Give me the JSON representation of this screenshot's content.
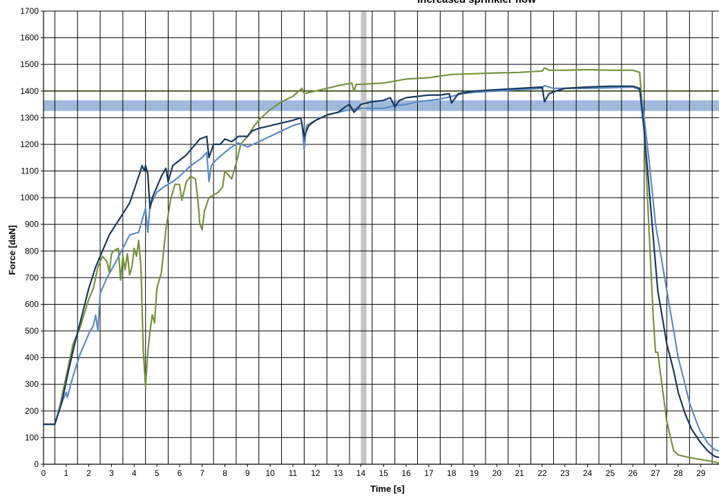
{
  "chart_data": {
    "type": "line",
    "title": "Increased sprinkler flow",
    "xlabel": "Time [s]",
    "ylabel": "Force [daN]",
    "xlim": [
      0,
      29.8
    ],
    "ylim": [
      0,
      1700
    ],
    "x_ticks": [
      0,
      1,
      2,
      3,
      4,
      5,
      6,
      7,
      8,
      9,
      10,
      11,
      12,
      13,
      14,
      15,
      16,
      17,
      18,
      19,
      20,
      21,
      22,
      23,
      24,
      25,
      26,
      27,
      28,
      29
    ],
    "x_tick_labels": [
      "0",
      "1",
      "2",
      "3",
      "4",
      "5",
      "6",
      "7",
      "8",
      "9",
      "10",
      "11",
      "12",
      "13",
      "14",
      "15",
      "16",
      "17",
      "18",
      "19",
      "20",
      "21",
      "22",
      "23",
      "24",
      "25",
      "26",
      "27",
      "28",
      "29"
    ],
    "y_ticks": [
      0,
      100,
      200,
      300,
      400,
      500,
      600,
      700,
      800,
      900,
      1000,
      1100,
      1200,
      1300,
      1400,
      1500,
      1600,
      1700
    ],
    "y_tick_labels": [
      "0",
      "100",
      "200",
      "300",
      "400",
      "500",
      "600",
      "700",
      "800",
      "900",
      "1000",
      "1100",
      "1200",
      "1300",
      "1400",
      "1500",
      "1600",
      "1700"
    ],
    "x_gridlines": [
      0.5,
      1.5,
      2.5,
      3.5,
      4.5,
      5.5,
      6.5,
      7.5,
      8.5,
      9.5,
      10.5,
      11.5,
      12.5,
      13.5,
      14.5,
      15.5,
      16.5,
      17.5,
      18.5,
      19.5,
      20.5,
      21.5,
      22.5,
      23.5,
      24.5,
      25.5,
      26.5,
      27.5,
      28.5,
      29.5
    ],
    "grid": true,
    "legend": "none",
    "reference_band": {
      "y_from": 1325,
      "y_to": 1365,
      "color": "#9fb9dd"
    },
    "reference_line": {
      "y": 1400,
      "color": "#9bc15a"
    },
    "marker_band": {
      "x_from": 14.0,
      "x_to": 14.25,
      "color": "#c4c4c4"
    },
    "series": [
      {
        "color": "#76923c",
        "points": [
          [
            0,
            150
          ],
          [
            0.5,
            150
          ],
          [
            0.7,
            210
          ],
          [
            1.0,
            330
          ],
          [
            1.3,
            450
          ],
          [
            1.6,
            510
          ],
          [
            2.0,
            620
          ],
          [
            2.2,
            660
          ],
          [
            2.4,
            740
          ],
          [
            2.6,
            780
          ],
          [
            2.8,
            760
          ],
          [
            2.9,
            720
          ],
          [
            3.0,
            790
          ],
          [
            3.1,
            800
          ],
          [
            3.3,
            810
          ],
          [
            3.4,
            690
          ],
          [
            3.5,
            780
          ],
          [
            3.6,
            730
          ],
          [
            3.7,
            790
          ],
          [
            3.8,
            710
          ],
          [
            3.9,
            740
          ],
          [
            4.0,
            810
          ],
          [
            4.1,
            780
          ],
          [
            4.2,
            840
          ],
          [
            4.3,
            740
          ],
          [
            4.4,
            430
          ],
          [
            4.5,
            290
          ],
          [
            4.6,
            420
          ],
          [
            4.7,
            500
          ],
          [
            4.8,
            560
          ],
          [
            4.9,
            530
          ],
          [
            5.0,
            660
          ],
          [
            5.2,
            720
          ],
          [
            5.4,
            880
          ],
          [
            5.6,
            990
          ],
          [
            5.8,
            1050
          ],
          [
            6.0,
            1050
          ],
          [
            6.1,
            990
          ],
          [
            6.3,
            1060
          ],
          [
            6.5,
            1080
          ],
          [
            6.7,
            1070
          ],
          [
            6.8,
            1000
          ],
          [
            6.9,
            900
          ],
          [
            7.0,
            880
          ],
          [
            7.1,
            950
          ],
          [
            7.3,
            1000
          ],
          [
            7.5,
            1010
          ],
          [
            7.7,
            1020
          ],
          [
            7.9,
            1040
          ],
          [
            8.0,
            1100
          ],
          [
            8.3,
            1070
          ],
          [
            8.5,
            1130
          ],
          [
            8.7,
            1200
          ],
          [
            9.0,
            1230
          ],
          [
            9.3,
            1270
          ],
          [
            9.6,
            1300
          ],
          [
            10.0,
            1330
          ],
          [
            10.5,
            1360
          ],
          [
            11.0,
            1380
          ],
          [
            11.4,
            1410
          ],
          [
            11.5,
            1390
          ],
          [
            12.0,
            1400
          ],
          [
            12.5,
            1410
          ],
          [
            13.0,
            1420
          ],
          [
            13.6,
            1430
          ],
          [
            13.7,
            1400
          ],
          [
            13.8,
            1425
          ],
          [
            14.0,
            1425
          ],
          [
            15.0,
            1430
          ],
          [
            16.0,
            1445
          ],
          [
            17.0,
            1450
          ],
          [
            18.0,
            1462
          ],
          [
            19.0,
            1465
          ],
          [
            20.0,
            1468
          ],
          [
            21.0,
            1470
          ],
          [
            22.0,
            1475
          ],
          [
            22.1,
            1487
          ],
          [
            22.3,
            1478
          ],
          [
            23.0,
            1478
          ],
          [
            24.0,
            1480
          ],
          [
            25.0,
            1478
          ],
          [
            26.0,
            1478
          ],
          [
            26.3,
            1470
          ],
          [
            26.5,
            1250
          ],
          [
            26.7,
            900
          ],
          [
            26.9,
            550
          ],
          [
            27.0,
            420
          ],
          [
            27.1,
            420
          ],
          [
            27.2,
            350
          ],
          [
            27.5,
            160
          ],
          [
            27.8,
            50
          ],
          [
            28.0,
            35
          ],
          [
            28.5,
            25
          ],
          [
            29.0,
            18
          ],
          [
            29.5,
            10
          ],
          [
            29.8,
            5
          ]
        ]
      },
      {
        "color": "#5b8ac6",
        "points": [
          [
            0,
            150
          ],
          [
            0.5,
            150
          ],
          [
            0.7,
            210
          ],
          [
            0.9,
            250
          ],
          [
            1.0,
            270
          ],
          [
            1.05,
            250
          ],
          [
            1.3,
            330
          ],
          [
            1.6,
            410
          ],
          [
            2.0,
            490
          ],
          [
            2.2,
            520
          ],
          [
            2.3,
            560
          ],
          [
            2.4,
            500
          ],
          [
            2.5,
            640
          ],
          [
            2.8,
            700
          ],
          [
            3.2,
            760
          ],
          [
            3.5,
            810
          ],
          [
            3.8,
            860
          ],
          [
            4.2,
            870
          ],
          [
            4.4,
            930
          ],
          [
            4.5,
            960
          ],
          [
            4.6,
            870
          ],
          [
            4.7,
            970
          ],
          [
            5.0,
            1020
          ],
          [
            5.3,
            1040
          ],
          [
            5.7,
            1060
          ],
          [
            6.0,
            1080
          ],
          [
            6.5,
            1120
          ],
          [
            7.0,
            1150
          ],
          [
            7.2,
            1170
          ],
          [
            7.3,
            1060
          ],
          [
            7.4,
            1120
          ],
          [
            7.6,
            1140
          ],
          [
            8.0,
            1170
          ],
          [
            8.3,
            1190
          ],
          [
            8.6,
            1205
          ],
          [
            9.0,
            1190
          ],
          [
            9.5,
            1210
          ],
          [
            10.0,
            1230
          ],
          [
            10.5,
            1250
          ],
          [
            11.0,
            1270
          ],
          [
            11.4,
            1280
          ],
          [
            11.5,
            1180
          ],
          [
            11.6,
            1270
          ],
          [
            12.0,
            1290
          ],
          [
            12.5,
            1310
          ],
          [
            13.0,
            1320
          ],
          [
            13.5,
            1330
          ],
          [
            14.0,
            1335
          ],
          [
            15.0,
            1335
          ],
          [
            15.5,
            1345
          ],
          [
            16.0,
            1350
          ],
          [
            16.5,
            1360
          ],
          [
            17.0,
            1365
          ],
          [
            17.5,
            1370
          ],
          [
            18.0,
            1380
          ],
          [
            18.5,
            1390
          ],
          [
            19.0,
            1395
          ],
          [
            20.0,
            1400
          ],
          [
            21.0,
            1405
          ],
          [
            22.0,
            1410
          ],
          [
            22.1,
            1420
          ],
          [
            22.5,
            1410
          ],
          [
            23.0,
            1410
          ],
          [
            24.0,
            1410
          ],
          [
            25.0,
            1412
          ],
          [
            26.0,
            1415
          ],
          [
            26.3,
            1405
          ],
          [
            26.5,
            1300
          ],
          [
            26.7,
            1150
          ],
          [
            27.0,
            900
          ],
          [
            27.3,
            750
          ],
          [
            27.5,
            650
          ],
          [
            27.8,
            500
          ],
          [
            28.0,
            400
          ],
          [
            28.3,
            300
          ],
          [
            28.5,
            230
          ],
          [
            28.8,
            160
          ],
          [
            29.0,
            120
          ],
          [
            29.3,
            80
          ],
          [
            29.6,
            55
          ],
          [
            29.8,
            50
          ]
        ]
      },
      {
        "color": "#17375e",
        "points": [
          [
            0,
            150
          ],
          [
            0.5,
            150
          ],
          [
            0.8,
            230
          ],
          [
            1.1,
            350
          ],
          [
            1.4,
            460
          ],
          [
            1.7,
            560
          ],
          [
            2.0,
            660
          ],
          [
            2.3,
            740
          ],
          [
            2.6,
            800
          ],
          [
            2.9,
            860
          ],
          [
            3.2,
            900
          ],
          [
            3.5,
            940
          ],
          [
            3.8,
            980
          ],
          [
            4.0,
            1030
          ],
          [
            4.2,
            1080
          ],
          [
            4.35,
            1120
          ],
          [
            4.45,
            1100
          ],
          [
            4.5,
            1120
          ],
          [
            4.6,
            1090
          ],
          [
            4.7,
            960
          ],
          [
            4.8,
            1000
          ],
          [
            5.0,
            1040
          ],
          [
            5.2,
            1080
          ],
          [
            5.4,
            1110
          ],
          [
            5.5,
            1060
          ],
          [
            5.7,
            1120
          ],
          [
            6.0,
            1140
          ],
          [
            6.3,
            1160
          ],
          [
            6.6,
            1190
          ],
          [
            6.9,
            1220
          ],
          [
            7.2,
            1230
          ],
          [
            7.3,
            1150
          ],
          [
            7.5,
            1200
          ],
          [
            7.8,
            1200
          ],
          [
            8.0,
            1220
          ],
          [
            8.3,
            1210
          ],
          [
            8.6,
            1230
          ],
          [
            9.0,
            1230
          ],
          [
            9.2,
            1250
          ],
          [
            9.5,
            1260
          ],
          [
            10.0,
            1270
          ],
          [
            10.5,
            1280
          ],
          [
            11.0,
            1290
          ],
          [
            11.35,
            1300
          ],
          [
            11.5,
            1230
          ],
          [
            11.7,
            1270
          ],
          [
            12.0,
            1290
          ],
          [
            12.5,
            1310
          ],
          [
            13.0,
            1320
          ],
          [
            13.3,
            1340
          ],
          [
            13.5,
            1350
          ],
          [
            13.7,
            1320
          ],
          [
            14.0,
            1350
          ],
          [
            14.5,
            1360
          ],
          [
            15.0,
            1365
          ],
          [
            15.3,
            1375
          ],
          [
            15.5,
            1340
          ],
          [
            15.7,
            1365
          ],
          [
            16.0,
            1375
          ],
          [
            16.5,
            1380
          ],
          [
            17.0,
            1385
          ],
          [
            17.5,
            1385
          ],
          [
            17.9,
            1390
          ],
          [
            18.0,
            1355
          ],
          [
            18.3,
            1390
          ],
          [
            19.0,
            1400
          ],
          [
            20.0,
            1405
          ],
          [
            21.0,
            1410
          ],
          [
            22.0,
            1415
          ],
          [
            22.1,
            1360
          ],
          [
            22.3,
            1390
          ],
          [
            22.6,
            1400
          ],
          [
            23.0,
            1410
          ],
          [
            24.0,
            1415
          ],
          [
            25.0,
            1418
          ],
          [
            26.0,
            1418
          ],
          [
            26.3,
            1410
          ],
          [
            26.5,
            1250
          ],
          [
            26.7,
            1050
          ],
          [
            26.9,
            850
          ],
          [
            27.1,
            650
          ],
          [
            27.3,
            550
          ],
          [
            27.5,
            450
          ],
          [
            27.8,
            350
          ],
          [
            28.0,
            270
          ],
          [
            28.3,
            190
          ],
          [
            28.6,
            130
          ],
          [
            29.0,
            80
          ],
          [
            29.3,
            50
          ],
          [
            29.6,
            30
          ],
          [
            29.8,
            25
          ]
        ]
      }
    ]
  }
}
